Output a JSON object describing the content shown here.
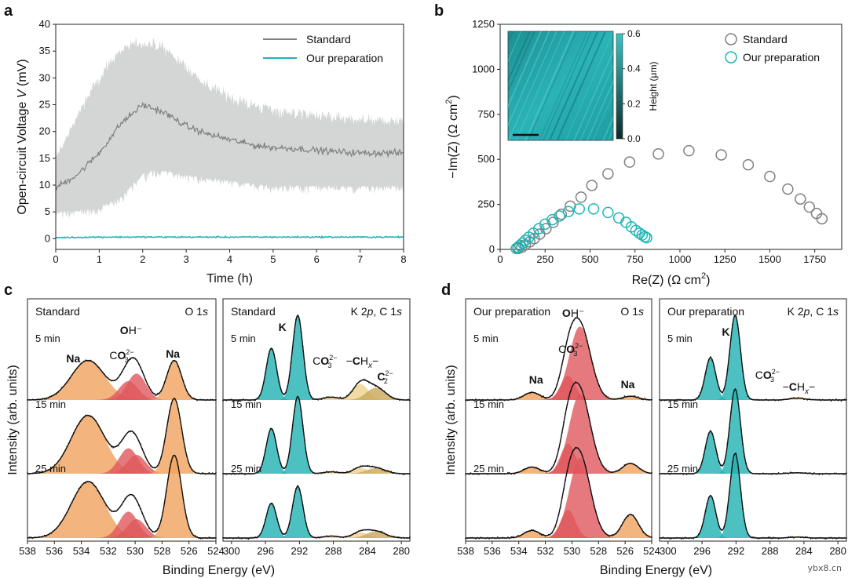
{
  "colors": {
    "standard": "#808080",
    "standard_band": "#d4d5d5",
    "ours": "#1fb5b5",
    "orange": "#f0a35c",
    "red": "#e0585c",
    "teal": "#21b2b2",
    "khaki": "#c9a85a",
    "gold": "#eed28c",
    "inset_dark": "#0c2a2a",
    "inset_light": "#38c4c4"
  },
  "panels": {
    "a": {
      "letter": "a"
    },
    "b": {
      "letter": "b"
    },
    "c": {
      "letter": "c"
    },
    "d": {
      "letter": "d"
    }
  },
  "chart_data": [
    {
      "id": "a",
      "type": "line",
      "xlabel_html": "Time (h)",
      "ylabel_parts": [
        "Open-circuit Voltage ",
        "V",
        " (mV)"
      ],
      "xlim": [
        0,
        8
      ],
      "ylim": [
        -2,
        40
      ],
      "xticks": [
        0,
        1,
        2,
        3,
        4,
        5,
        6,
        7,
        8
      ],
      "yticks": [
        0,
        5,
        10,
        15,
        20,
        25,
        30,
        35,
        40
      ],
      "legend": {
        "position": "top-right",
        "entries": [
          "Standard",
          "Our preparation"
        ]
      },
      "series": [
        {
          "name": "Standard",
          "x": [
            0,
            0.5,
            1,
            1.5,
            2,
            2.5,
            3,
            3.5,
            4,
            4.5,
            5,
            5.5,
            6,
            6.5,
            7,
            7.5,
            8
          ],
          "values": [
            9.5,
            12.0,
            16.0,
            21.5,
            25.0,
            23.5,
            21.0,
            19.5,
            18.5,
            17.5,
            17.0,
            16.8,
            16.5,
            16.2,
            16.0,
            16.0,
            16.0
          ],
          "band_upper": [
            15.0,
            23.0,
            30.0,
            35.5,
            36.5,
            35.5,
            32.0,
            28.5,
            26.5,
            25.0,
            24.0,
            23.5,
            23.0,
            22.5,
            22.0,
            22.0,
            22.0
          ],
          "band_lower": [
            5.0,
            5.5,
            6.0,
            8.0,
            12.5,
            13.0,
            12.0,
            11.5,
            11.0,
            10.5,
            10.0,
            10.0,
            10.0,
            10.0,
            10.0,
            10.0,
            10.0
          ]
        },
        {
          "name": "Our preparation",
          "x": [
            0,
            1,
            2,
            3,
            4,
            5,
            6,
            7,
            8
          ],
          "values": [
            0.2,
            0.3,
            0.3,
            0.3,
            0.3,
            0.3,
            0.3,
            0.3,
            0.3
          ]
        }
      ]
    },
    {
      "id": "b",
      "type": "scatter",
      "xlabel_parts": [
        "Re(Z) (Ω cm",
        "2",
        ")"
      ],
      "ylabel_parts": [
        "−Im(Z) (Ω cm",
        "2",
        ")"
      ],
      "xlim": [
        0,
        1900
      ],
      "ylim": [
        0,
        1250
      ],
      "xticks": [
        0,
        250,
        500,
        750,
        1000,
        1250,
        1500,
        1750
      ],
      "yticks": [
        0,
        250,
        500,
        750,
        1000,
        1250
      ],
      "legend": {
        "position": "top-right",
        "entries": [
          "Standard",
          "Our preparation"
        ]
      },
      "series": [
        {
          "name": "Standard",
          "x": [
            100,
            120,
            140,
            165,
            190,
            220,
            255,
            295,
            340,
            390,
            450,
            510,
            600,
            720,
            880,
            1050,
            1230,
            1380,
            1500,
            1600,
            1670,
            1720,
            1760,
            1790
          ],
          "y": [
            5,
            12,
            25,
            42,
            60,
            85,
            115,
            150,
            195,
            240,
            290,
            355,
            420,
            485,
            530,
            548,
            525,
            470,
            405,
            335,
            280,
            235,
            200,
            170
          ]
        },
        {
          "name": "Our preparation",
          "x": [
            90,
            100,
            110,
            125,
            140,
            160,
            185,
            215,
            250,
            290,
            330,
            380,
            440,
            520,
            600,
            660,
            700,
            730,
            755,
            775,
            790,
            805,
            815
          ],
          "y": [
            5,
            12,
            22,
            35,
            50,
            68,
            90,
            115,
            140,
            165,
            185,
            210,
            225,
            225,
            205,
            175,
            150,
            125,
            105,
            90,
            80,
            70,
            65
          ]
        }
      ],
      "inset": {
        "colorbar_label": "Height (μm)",
        "colorbar_ticks": [
          "0.0",
          "0.2",
          "0.4",
          "0.6"
        ]
      }
    },
    {
      "id": "c-left",
      "type": "line",
      "header_left": "Standard",
      "header_right_parts": [
        "O 1",
        "s"
      ],
      "xlim": [
        538,
        524
      ],
      "xticks": [
        538,
        536,
        534,
        532,
        530,
        528,
        526,
        524
      ],
      "rows": [
        "5 min",
        "15 min",
        "25 min"
      ],
      "peak_labels": [
        {
          "text": "Na",
          "x": 534.6
        },
        {
          "text": "CO",
          "sub": "3",
          "sup": "2−",
          "x": 531.0
        },
        {
          "text": "OH⁻",
          "x": 530.3
        },
        {
          "text": "Na",
          "x": 527.2
        }
      ],
      "components": [
        {
          "name": "Na (533.5)",
          "center": 533.5,
          "width": 1.25,
          "color": "orange",
          "heights": [
            0.42,
            0.62,
            0.6
          ]
        },
        {
          "name": "CO3 (530.5)",
          "center": 530.5,
          "width": 0.7,
          "color": "red",
          "heights": [
            0.2,
            0.27,
            0.28
          ]
        },
        {
          "name": "OH (529.9)",
          "center": 529.9,
          "width": 0.7,
          "color": "red",
          "heights": [
            0.28,
            0.2,
            0.2
          ]
        },
        {
          "name": "Na (527.1)",
          "center": 527.1,
          "width": 0.55,
          "color": "orange",
          "heights": [
            0.42,
            0.8,
            0.88
          ]
        }
      ]
    },
    {
      "id": "c-right",
      "type": "line",
      "header_left": "Standard",
      "header_right_parts": [
        "K 2",
        "p",
        ", C 1",
        "s"
      ],
      "xlim": [
        301,
        279
      ],
      "xticks": [
        300,
        296,
        292,
        288,
        284,
        280
      ],
      "rows": [
        "5 min",
        "15 min",
        "25 min"
      ],
      "peak_labels": [
        {
          "text": "K",
          "x": 294.0
        },
        {
          "text": "CO",
          "sub": "3",
          "sup": "2−",
          "x": 289.0
        },
        {
          "text": "−CH",
          "sub": "x",
          "tail": "−",
          "x": 284.6
        },
        {
          "text": "C",
          "sub": "2",
          "sup": "2−",
          "x": 281.9
        }
      ],
      "components": [
        {
          "name": "K 2p3/2",
          "center": 292.2,
          "width": 0.62,
          "color": "teal",
          "heights": [
            0.9,
            0.82,
            0.55
          ]
        },
        {
          "name": "K 2p1/2",
          "center": 295.3,
          "width": 0.62,
          "color": "teal",
          "heights": [
            0.55,
            0.48,
            0.37
          ]
        },
        {
          "name": "CO3",
          "center": 288.3,
          "width": 0.9,
          "color": "gold",
          "heights": [
            0.03,
            0.02,
            0.02
          ]
        },
        {
          "name": "CHx",
          "center": 284.8,
          "width": 0.9,
          "color": "gold",
          "heights": [
            0.17,
            0.06,
            0.06
          ]
        },
        {
          "name": "C2",
          "center": 283.0,
          "width": 1.1,
          "color": "khaki",
          "heights": [
            0.13,
            0.06,
            0.07
          ]
        }
      ]
    },
    {
      "id": "d-left",
      "type": "line",
      "header_left": "Our preparation",
      "header_right_parts": [
        "O 1",
        "s"
      ],
      "xlim": [
        538,
        524
      ],
      "xticks": [
        538,
        536,
        534,
        532,
        530,
        528,
        526,
        524
      ],
      "rows": [
        "5 min",
        "15 min",
        "25 min"
      ],
      "peak_labels": [
        {
          "text": "Na",
          "x": 532.7
        },
        {
          "text": "CO",
          "sub": "3",
          "sup": "2−",
          "x": 530.1
        },
        {
          "text": "OH⁻",
          "x": 529.9
        },
        {
          "text": "Na",
          "x": 525.8
        }
      ],
      "components": [
        {
          "name": "Na (533)",
          "center": 533.0,
          "width": 0.6,
          "color": "orange",
          "heights": [
            0.08,
            0.07,
            0.08
          ]
        },
        {
          "name": "CO3 (530.3)",
          "center": 530.3,
          "width": 0.55,
          "color": "red",
          "heights": [
            0.26,
            0.32,
            0.3
          ]
        },
        {
          "name": "OH (529.4)",
          "center": 529.4,
          "width": 0.8,
          "color": "red",
          "heights": [
            0.78,
            0.85,
            0.85
          ]
        },
        {
          "name": "Na (525.6)",
          "center": 525.6,
          "width": 0.6,
          "color": "orange",
          "heights": [
            0.04,
            0.11,
            0.25
          ]
        }
      ]
    },
    {
      "id": "d-right",
      "type": "line",
      "header_left": "Our preparation",
      "header_right_parts": [
        "K 2",
        "p",
        ", C 1",
        "s"
      ],
      "xlim": [
        301,
        279
      ],
      "xticks": [
        300,
        296,
        292,
        288,
        284,
        280
      ],
      "rows": [
        "5 min",
        "15 min",
        "25 min"
      ],
      "peak_labels": [
        {
          "text": "K",
          "x": 293.2
        },
        {
          "text": "CO",
          "sub": "3",
          "sup": "2−",
          "x": 288.3
        },
        {
          "text": "−CH",
          "sub": "x",
          "tail": "−",
          "x": 284.6
        }
      ],
      "components": [
        {
          "name": "K 2p3/2",
          "center": 292.1,
          "width": 0.62,
          "color": "teal",
          "heights": [
            0.9,
            0.9,
            0.9
          ]
        },
        {
          "name": "K 2p1/2",
          "center": 295.0,
          "width": 0.62,
          "color": "teal",
          "heights": [
            0.45,
            0.45,
            0.45
          ]
        },
        {
          "name": "CHx",
          "center": 284.8,
          "width": 0.9,
          "color": "gold",
          "heights": [
            0.02,
            0.01,
            0.01
          ]
        }
      ]
    }
  ],
  "shared_labels": {
    "c_xlabel": "Binding Energy (eV)",
    "d_xlabel": "Binding Energy (eV)",
    "c_ylabel": "Intensity (arb. units)",
    "d_ylabel": "Intensity (arb. units)"
  },
  "watermark": "ybx8.cn"
}
